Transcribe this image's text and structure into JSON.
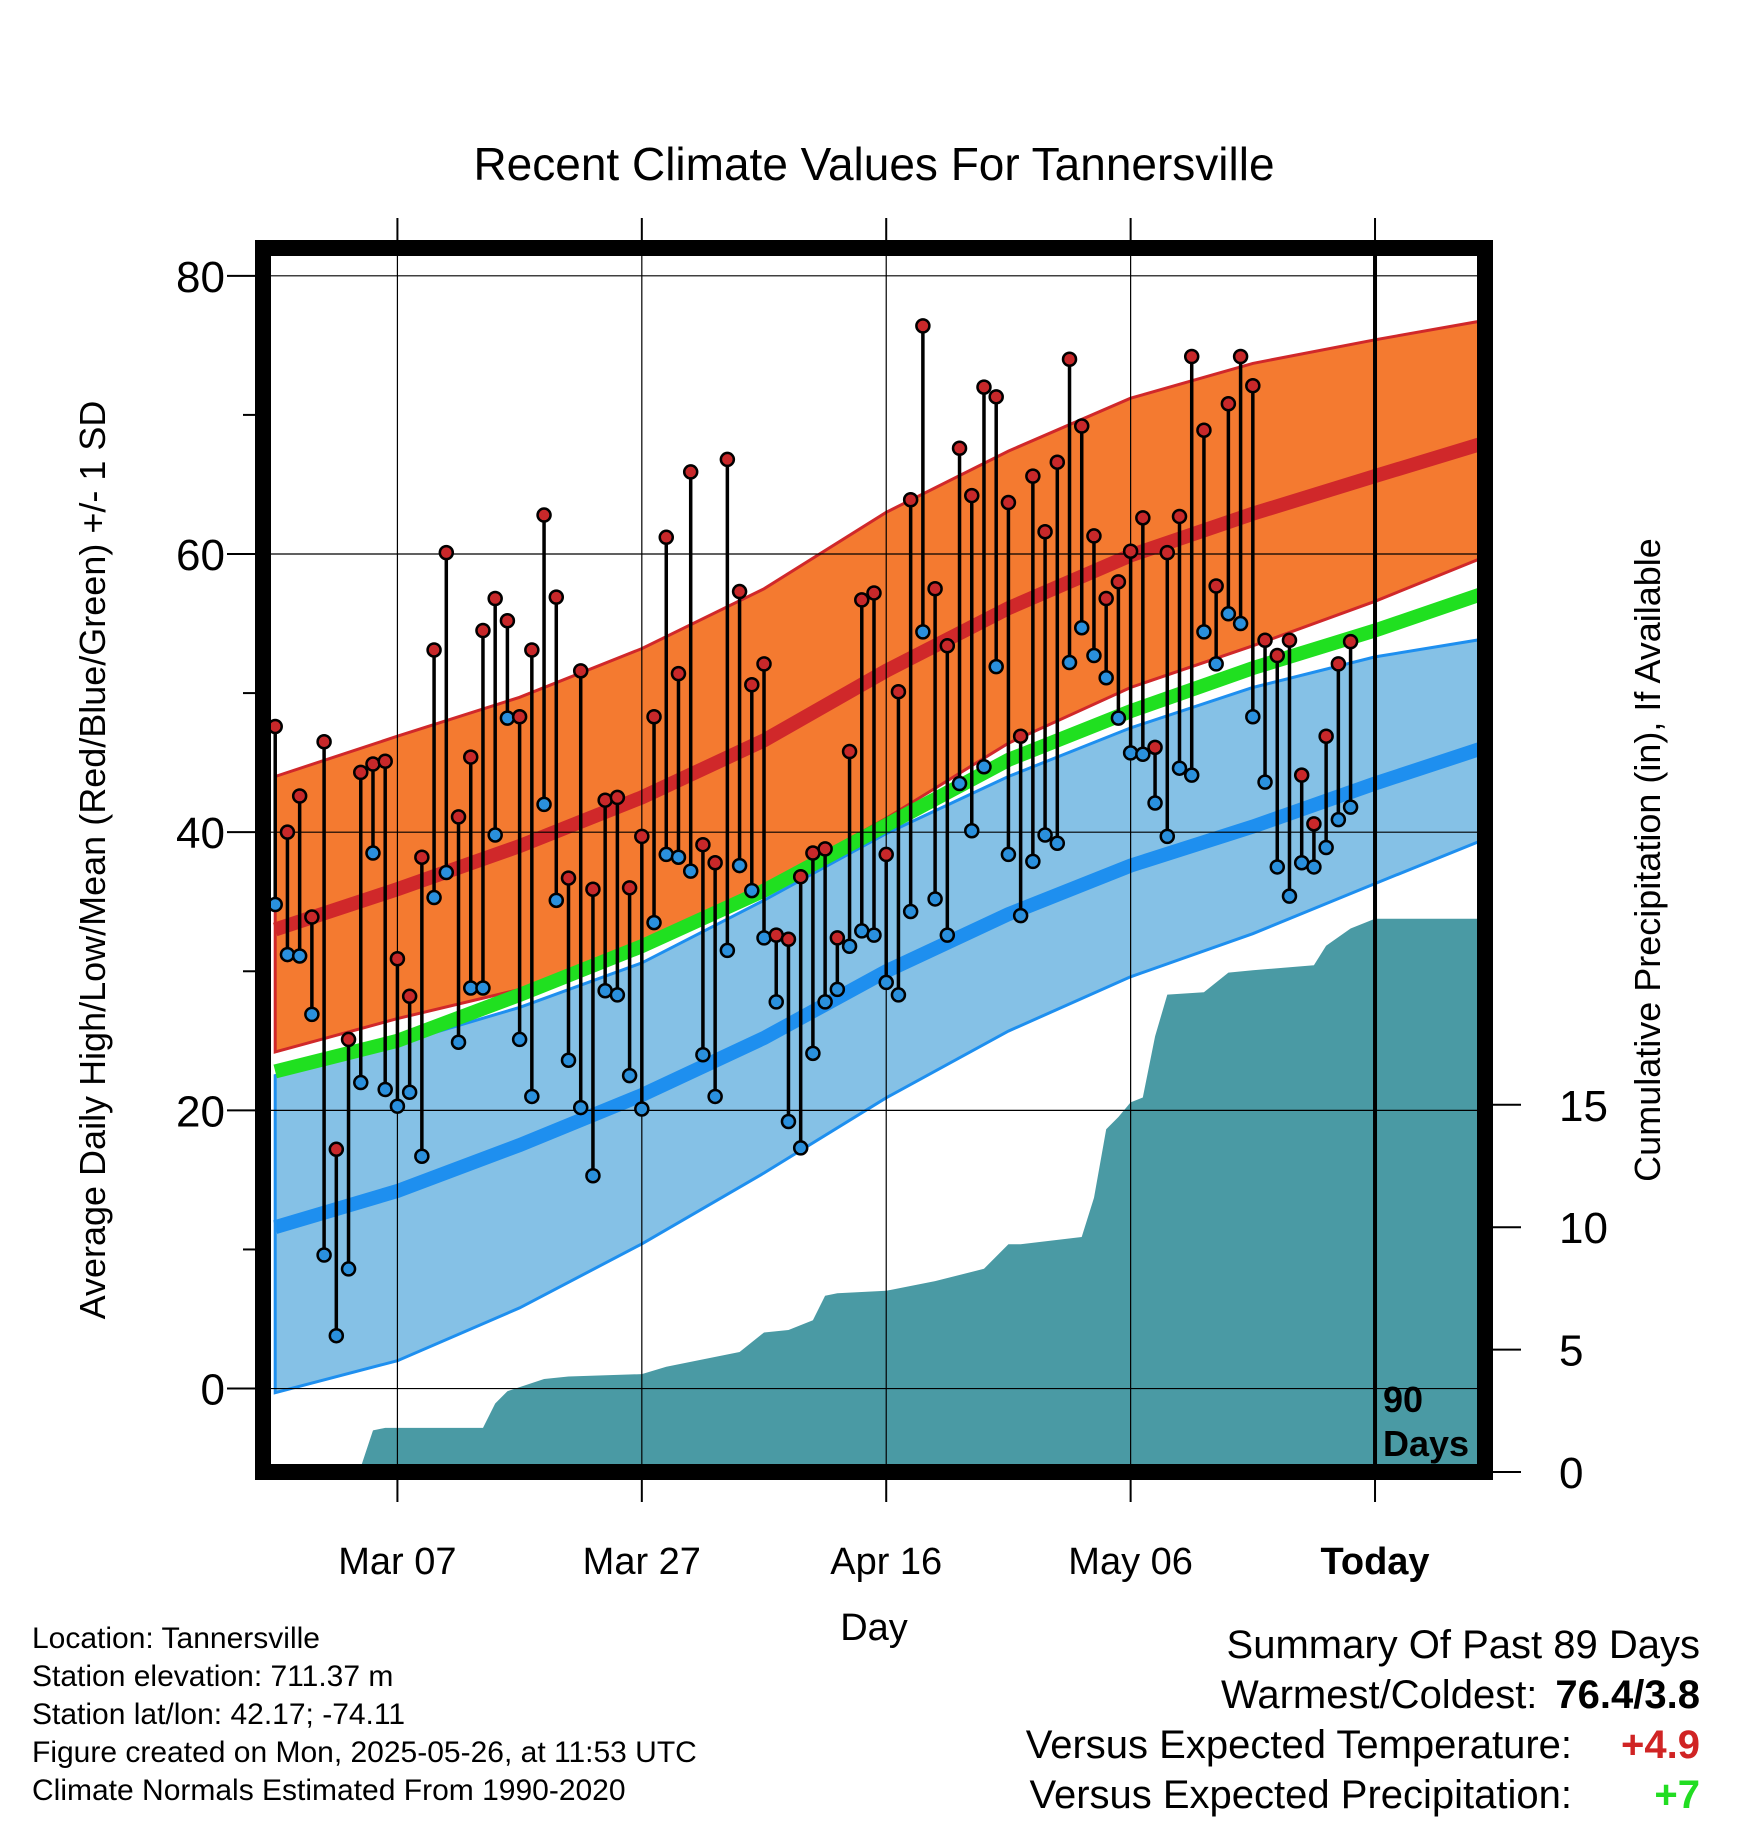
{
  "chart_data": {
    "type": "line",
    "title": "Recent Climate Values For Tannersville",
    "xlabel": "Day",
    "ylabel": "Average Daily High/Low/Mean (Red/Blue/Green) +/- 1 SD",
    "ylabel_right": "Cumulative Precipitation (in), If Available",
    "x_ticks": [
      "Mar 07",
      "Mar 27",
      "Apr 16",
      "May 06",
      "Today"
    ],
    "x_tick_days": [
      10,
      30,
      50,
      70,
      90
    ],
    "y_ticks": [
      0,
      20,
      40,
      60,
      80
    ],
    "y_ticks_right": [
      0,
      5,
      10,
      15
    ],
    "ylim": [
      -6,
      82
    ],
    "ylim_right": [
      0,
      50
    ],
    "xlim": [
      -1,
      99
    ],
    "days_label": "90 Days",
    "colors": {
      "high_band": "#f47a30",
      "high_mean": "#d0282a",
      "low_band": "#85c1e6",
      "low_mean": "#1e8fef",
      "mean": "#20e020",
      "precip": "#4a9aa4",
      "high_dot": "#c8282a",
      "low_dot": "#2a90dd"
    },
    "normal_high": {
      "x": [
        0,
        10,
        20,
        30,
        40,
        50,
        60,
        70,
        80,
        90,
        99
      ],
      "mean": [
        33.0,
        35.9,
        39.0,
        42.5,
        46.6,
        51.6,
        56.1,
        59.9,
        62.9,
        65.6,
        68.0
      ],
      "upper": [
        44.0,
        46.9,
        49.7,
        53.2,
        57.5,
        63.0,
        67.4,
        71.2,
        73.7,
        75.4,
        76.8
      ],
      "lower": [
        24.2,
        26.6,
        28.7,
        32.0,
        36.1,
        41.0,
        46.4,
        50.4,
        53.4,
        56.6,
        59.8
      ]
    },
    "normal_low": {
      "x": [
        0,
        10,
        20,
        30,
        40,
        50,
        60,
        70,
        80,
        90,
        99
      ],
      "mean": [
        11.6,
        14.2,
        17.5,
        21.1,
        25.2,
        30.0,
        34.1,
        37.6,
        40.4,
        43.5,
        46.1
      ],
      "upper": [
        22.5,
        24.8,
        27.4,
        30.6,
        35.1,
        39.9,
        44.0,
        47.5,
        50.4,
        52.6,
        53.9
      ],
      "lower": [
        -0.3,
        2.0,
        5.8,
        10.4,
        15.5,
        20.9,
        25.7,
        29.6,
        32.7,
        36.3,
        39.5
      ]
    },
    "normal_mean": {
      "x": [
        0,
        10,
        20,
        30,
        40,
        50,
        60,
        70,
        80,
        90,
        99
      ],
      "values": [
        22.8,
        25.0,
        28.3,
        31.8,
        35.8,
        40.5,
        45.2,
        48.7,
        51.8,
        54.5,
        57.2
      ]
    },
    "daily_high": [
      47.6,
      40.0,
      42.6,
      33.9,
      46.5,
      17.2,
      25.1,
      44.3,
      44.9,
      45.1,
      30.9,
      28.2,
      38.2,
      53.1,
      60.1,
      41.1,
      45.4,
      54.5,
      56.8,
      55.2,
      48.3,
      53.1,
      62.8,
      56.9,
      36.7,
      51.6,
      35.9,
      42.3,
      42.5,
      36.0,
      39.7,
      48.3,
      61.2,
      51.4,
      65.9,
      39.1,
      37.8,
      66.8,
      57.3,
      50.6,
      52.1,
      32.6,
      32.3,
      36.8,
      38.5,
      38.8,
      32.4,
      45.8,
      56.7,
      57.2,
      38.4,
      50.1,
      63.9,
      76.4,
      57.5,
      53.4,
      67.6,
      64.2,
      72.0,
      71.3,
      63.7,
      46.9,
      65.6,
      61.6,
      66.6,
      74.0,
      69.2,
      61.3,
      56.8,
      58.0,
      60.2,
      62.6,
      46.1,
      60.1,
      62.7,
      74.2,
      68.9,
      57.7,
      70.8,
      74.2,
      72.1,
      53.8,
      52.7,
      53.8,
      44.1,
      40.6,
      46.9,
      52.1,
      53.7
    ],
    "daily_low": [
      34.8,
      31.2,
      31.1,
      26.9,
      9.6,
      3.8,
      8.6,
      22.0,
      38.5,
      21.5,
      20.3,
      21.3,
      16.7,
      35.3,
      37.1,
      24.9,
      28.8,
      28.8,
      39.8,
      48.2,
      25.1,
      21.0,
      42.0,
      35.1,
      23.6,
      20.2,
      15.3,
      28.6,
      28.3,
      22.5,
      20.1,
      33.5,
      38.4,
      38.2,
      37.2,
      24.0,
      21.0,
      31.5,
      37.6,
      35.8,
      32.4,
      27.8,
      19.2,
      17.3,
      24.1,
      27.8,
      28.7,
      31.8,
      32.9,
      32.6,
      29.2,
      28.3,
      34.3,
      54.4,
      35.2,
      32.6,
      43.5,
      40.1,
      44.7,
      51.9,
      38.4,
      34.0,
      37.9,
      39.8,
      39.2,
      52.2,
      54.7,
      52.7,
      51.1,
      48.2,
      45.7,
      45.6,
      42.1,
      39.7,
      44.6,
      44.1,
      54.4,
      52.1,
      55.7,
      55.0,
      48.3,
      43.6,
      37.5,
      35.4,
      37.8,
      37.5,
      38.9,
      40.9,
      41.8
    ],
    "cumulative_precip": {
      "x": [
        0,
        2,
        7,
        8,
        9,
        17,
        18,
        19,
        22,
        24,
        30,
        32,
        35,
        38,
        40,
        42,
        44,
        45,
        46,
        50,
        54,
        58,
        60,
        61,
        66,
        67,
        68,
        69,
        70,
        71,
        72,
        73,
        76,
        78,
        80,
        85,
        86,
        88,
        90,
        99
      ],
      "values": [
        0.0,
        0.2,
        0.2,
        1.7,
        1.8,
        1.8,
        2.8,
        3.3,
        3.8,
        3.9,
        4.0,
        4.3,
        4.6,
        4.9,
        5.7,
        5.8,
        6.2,
        7.2,
        7.3,
        7.4,
        7.8,
        8.3,
        9.3,
        9.3,
        9.6,
        11.2,
        14.0,
        14.5,
        15.1,
        15.3,
        17.8,
        19.5,
        19.6,
        20.4,
        20.5,
        20.7,
        21.5,
        22.2,
        22.6,
        22.6
      ]
    }
  },
  "info": {
    "location": "Location: Tannersville",
    "elevation": "Station elevation: 711.37 m",
    "latlon": "Station lat/lon: 42.17; -74.11",
    "created": "Figure created on Mon, 2025-05-26, at 11:53 UTC",
    "normals": "Climate Normals Estimated From 1990-2020"
  },
  "summary": {
    "title": "Summary Of Past 89 Days",
    "warm_cold_label": "Warmest/Coldest:",
    "warm_cold_value": "76.4/3.8",
    "temp_label": "Versus Expected Temperature:",
    "temp_value": "+4.9",
    "temp_color": "#d02424",
    "precip_label": "Versus Expected Precipitation:",
    "precip_value": "+7",
    "precip_color": "#22dd22"
  }
}
